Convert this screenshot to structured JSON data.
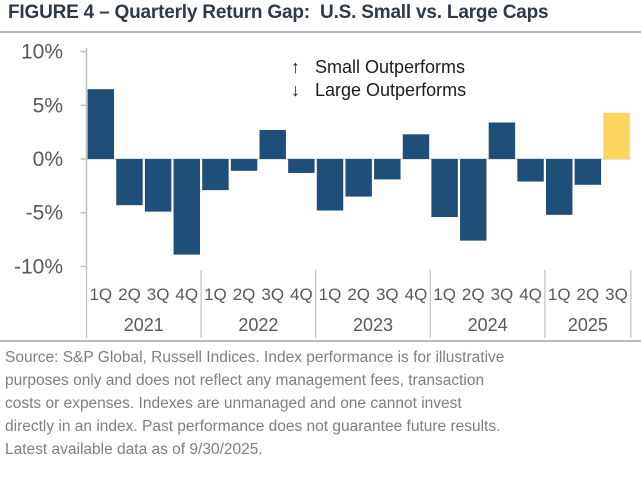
{
  "header": {
    "title": "FIGURE 4 – Quarterly Return Gap:  U.S. Small vs. Large Caps"
  },
  "chart_data": {
    "type": "bar",
    "title": "Quarterly Return Gap: U.S. Small vs. Large Caps",
    "unit": "%",
    "ylim": [
      -10,
      10
    ],
    "grid": "zero-line-only",
    "legend_position": "top-center-inside",
    "y_axis": {
      "ticks": [
        {
          "value": 10,
          "label": "10%"
        },
        {
          "value": 5,
          "label": "5%"
        },
        {
          "value": 0,
          "label": "0%"
        },
        {
          "value": -5,
          "label": "-5%"
        },
        {
          "value": -10,
          "label": "-10%"
        }
      ]
    },
    "groups": [
      {
        "year": "2021",
        "quarters": [
          "1Q",
          "2Q",
          "3Q",
          "4Q"
        ],
        "values": [
          6.5,
          -4.3,
          -4.9,
          -8.9
        ]
      },
      {
        "year": "2022",
        "quarters": [
          "1Q",
          "2Q",
          "3Q",
          "4Q"
        ],
        "values": [
          -2.9,
          -1.1,
          2.7,
          -1.3
        ]
      },
      {
        "year": "2023",
        "quarters": [
          "1Q",
          "2Q",
          "3Q",
          "4Q"
        ],
        "values": [
          -4.8,
          -3.5,
          -1.9,
          2.3
        ]
      },
      {
        "year": "2024",
        "quarters": [
          "1Q",
          "2Q",
          "3Q",
          "4Q"
        ],
        "values": [
          -5.4,
          -7.6,
          3.4,
          -2.1
        ]
      },
      {
        "year": "2025",
        "quarters": [
          "1Q",
          "2Q",
          "3Q"
        ],
        "values": [
          -5.2,
          -2.4,
          4.3
        ]
      }
    ],
    "highlight_index": 18,
    "highlighted_bar": {
      "year": "2025",
      "quarter": "3Q",
      "value": 4.3
    },
    "annotation": {
      "up_arrow": "↑",
      "up_text": "Small Outperforms",
      "down_arrow": "↓",
      "down_text": "Large Outperforms"
    },
    "colors": {
      "bar": "#1F4E78",
      "highlight": "#FBD55E",
      "zero_line": "#D9D9D9",
      "axis_line": "#BFBFBF",
      "axis_text": "#595959",
      "title_text": "#2E3A47",
      "annotation_text": "#1C1C1C",
      "source_text": "#7F7F7F"
    }
  },
  "footer": {
    "lines": [
      "Source: S&P Global, Russell Indices. Index performance is for illustrative",
      "purposes only and does not reflect any management fees, transaction",
      "costs or expenses. Indexes are unmanaged and one cannot invest",
      "directly in an index. Past performance does not guarantee future results.",
      "Latest available data as of 9/30/2025."
    ]
  }
}
